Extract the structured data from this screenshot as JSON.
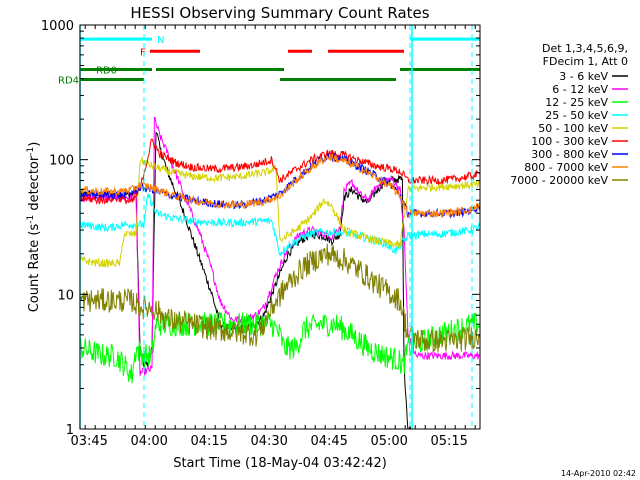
{
  "chart_data": {
    "type": "line",
    "title": "HESSI Observing Summary Count Rates",
    "xlabel": "Start Time (18-May-04 03:42:42)",
    "ylabel": "Count Rate (s⁻¹ detector⁻¹)",
    "ylabel_parts": {
      "main": "Count Rate (s",
      "sup1": "-1",
      "mid": " detector",
      "sup2": "-1",
      "end": ")"
    },
    "y_scale": "log",
    "ylim": [
      1,
      1000
    ],
    "xlim_minutes": [
      0,
      100
    ],
    "y_ticks": [
      {
        "value": 1,
        "label": "1"
      },
      {
        "value": 10,
        "label": "10"
      },
      {
        "value": 100,
        "label": "100"
      },
      {
        "value": 1000,
        "label": "1000"
      }
    ],
    "x_ticks": [
      {
        "t": 2.3,
        "label": "03:45"
      },
      {
        "t": 17.3,
        "label": "04:00"
      },
      {
        "t": 32.3,
        "label": "04:15"
      },
      {
        "t": 47.3,
        "label": "04:30"
      },
      {
        "t": 62.3,
        "label": "04:45"
      },
      {
        "t": 77.3,
        "label": "05:00"
      },
      {
        "t": 92.3,
        "label": "05:15"
      }
    ],
    "grid": false,
    "legend_position": "right",
    "legend_header": [
      "Det 1,3,4,5,6,9,",
      "FDecim 1, Att 0"
    ],
    "series": [
      {
        "name": "3 - 6 keV",
        "color": "#000000",
        "points": [
          [
            0,
            55
          ],
          [
            13,
            55
          ],
          [
            14,
            60
          ],
          [
            15,
            4
          ],
          [
            16,
            3
          ],
          [
            17,
            3
          ],
          [
            18,
            4
          ],
          [
            19,
            170
          ],
          [
            20,
            120
          ],
          [
            22,
            80
          ],
          [
            26,
            40
          ],
          [
            30,
            18
          ],
          [
            33,
            10
          ],
          [
            35,
            6
          ],
          [
            38,
            5.5
          ],
          [
            41,
            5.5
          ],
          [
            44,
            6
          ],
          [
            46,
            7
          ],
          [
            49,
            12
          ],
          [
            52,
            20
          ],
          [
            55,
            25
          ],
          [
            58,
            28
          ],
          [
            61,
            27
          ],
          [
            63,
            25
          ],
          [
            65,
            28
          ],
          [
            66,
            52
          ],
          [
            68,
            60
          ],
          [
            70,
            52
          ],
          [
            72,
            48
          ],
          [
            74,
            58
          ],
          [
            76,
            68
          ],
          [
            78,
            70
          ],
          [
            80,
            72
          ],
          [
            80.6,
            70
          ],
          [
            81,
            3
          ],
          [
            82,
            1
          ],
          [
            83,
            1
          ]
        ]
      },
      {
        "name": "6 - 12 keV",
        "color": "#ff00ff",
        "points": [
          [
            0,
            52
          ],
          [
            13,
            52
          ],
          [
            14,
            58
          ],
          [
            15,
            2.6
          ],
          [
            18,
            2.8
          ],
          [
            18.6,
            200
          ],
          [
            20,
            150
          ],
          [
            22,
            110
          ],
          [
            26,
            55
          ],
          [
            30,
            28
          ],
          [
            33,
            15
          ],
          [
            35,
            9
          ],
          [
            38,
            6.5
          ],
          [
            41,
            6.5
          ],
          [
            44,
            7
          ],
          [
            46,
            8
          ],
          [
            49,
            14
          ],
          [
            52,
            22
          ],
          [
            55,
            28
          ],
          [
            58,
            30
          ],
          [
            61,
            28
          ],
          [
            63,
            27
          ],
          [
            65,
            32
          ],
          [
            66,
            58
          ],
          [
            68,
            68
          ],
          [
            70,
            55
          ],
          [
            72,
            50
          ],
          [
            74,
            62
          ],
          [
            76,
            70
          ],
          [
            78,
            72
          ],
          [
            80,
            60
          ],
          [
            81,
            30
          ],
          [
            82,
            5
          ],
          [
            84,
            3.5
          ],
          [
            92,
            3.5
          ],
          [
            100,
            3.5
          ]
        ]
      },
      {
        "name": "12 - 25 keV",
        "color": "#00ff00",
        "points": [
          [
            0,
            4
          ],
          [
            6,
            3.5
          ],
          [
            9,
            3.5
          ],
          [
            11,
            3
          ],
          [
            13,
            2.5
          ],
          [
            14,
            4
          ],
          [
            16,
            3.5
          ],
          [
            18,
            3.5
          ],
          [
            19,
            6
          ],
          [
            24,
            6
          ],
          [
            30,
            6
          ],
          [
            36,
            6
          ],
          [
            42,
            6
          ],
          [
            48,
            6
          ],
          [
            50,
            5
          ],
          [
            51,
            4
          ],
          [
            54,
            4
          ],
          [
            56,
            5.5
          ],
          [
            60,
            6
          ],
          [
            64,
            6
          ],
          [
            68,
            5
          ],
          [
            72,
            4
          ],
          [
            76,
            3.5
          ],
          [
            79,
            3.3
          ],
          [
            81,
            3
          ],
          [
            82,
            4
          ],
          [
            86,
            4.5
          ],
          [
            90,
            5
          ],
          [
            94,
            5.5
          ],
          [
            98,
            6
          ],
          [
            100,
            6
          ]
        ]
      },
      {
        "name": "25 - 50 keV",
        "color": "#00ffff",
        "points": [
          [
            0,
            33
          ],
          [
            7,
            31
          ],
          [
            9,
            32
          ],
          [
            11,
            33
          ],
          [
            13,
            33
          ],
          [
            16,
            33
          ],
          [
            17,
            55
          ],
          [
            19,
            40
          ],
          [
            23,
            37
          ],
          [
            28,
            35
          ],
          [
            34,
            34
          ],
          [
            40,
            34
          ],
          [
            46,
            35
          ],
          [
            48,
            35
          ],
          [
            50,
            20
          ],
          [
            52,
            23
          ],
          [
            56,
            27
          ],
          [
            60,
            29
          ],
          [
            64,
            29
          ],
          [
            68,
            28
          ],
          [
            72,
            26
          ],
          [
            76,
            24
          ],
          [
            79,
            21
          ],
          [
            81,
            25
          ],
          [
            82,
            27
          ],
          [
            86,
            28
          ],
          [
            90,
            28
          ],
          [
            94,
            29
          ],
          [
            98,
            30
          ],
          [
            100,
            32
          ]
        ]
      },
      {
        "name": "50 - 100 keV",
        "color": "#d4d400",
        "points": [
          [
            0,
            18
          ],
          [
            5,
            17
          ],
          [
            10,
            17
          ],
          [
            11,
            28
          ],
          [
            14,
            28
          ],
          [
            15,
            100
          ],
          [
            18,
            90
          ],
          [
            22,
            82
          ],
          [
            28,
            75
          ],
          [
            34,
            73
          ],
          [
            40,
            75
          ],
          [
            46,
            80
          ],
          [
            49,
            85
          ],
          [
            50,
            25
          ],
          [
            54,
            30
          ],
          [
            58,
            38
          ],
          [
            61,
            50
          ],
          [
            63,
            45
          ],
          [
            66,
            30
          ],
          [
            70,
            27
          ],
          [
            74,
            25
          ],
          [
            77,
            24
          ],
          [
            80,
            23
          ],
          [
            82,
            60
          ],
          [
            86,
            62
          ],
          [
            90,
            63
          ],
          [
            94,
            64
          ],
          [
            98,
            65
          ],
          [
            100,
            65
          ]
        ]
      },
      {
        "name": "100 - 300 keV",
        "color": "#ff0000",
        "points": [
          [
            0,
            52
          ],
          [
            5,
            50
          ],
          [
            10,
            52
          ],
          [
            13,
            48
          ],
          [
            15,
            60
          ],
          [
            18,
            140
          ],
          [
            20,
            110
          ],
          [
            24,
            95
          ],
          [
            28,
            88
          ],
          [
            34,
            85
          ],
          [
            40,
            88
          ],
          [
            44,
            92
          ],
          [
            48,
            100
          ],
          [
            50,
            70
          ],
          [
            54,
            85
          ],
          [
            58,
            100
          ],
          [
            62,
            112
          ],
          [
            66,
            108
          ],
          [
            70,
            98
          ],
          [
            74,
            90
          ],
          [
            78,
            85
          ],
          [
            80,
            82
          ],
          [
            82,
            70
          ],
          [
            86,
            70
          ],
          [
            90,
            70
          ],
          [
            94,
            72
          ],
          [
            98,
            76
          ],
          [
            100,
            78
          ]
        ]
      },
      {
        "name": "300 - 800 keV",
        "color": "#0000ff",
        "points": [
          [
            0,
            56
          ],
          [
            5,
            55
          ],
          [
            10,
            55
          ],
          [
            13,
            57
          ],
          [
            15,
            62
          ],
          [
            18,
            60
          ],
          [
            22,
            55
          ],
          [
            28,
            50
          ],
          [
            34,
            47
          ],
          [
            40,
            46
          ],
          [
            46,
            50
          ],
          [
            50,
            56
          ],
          [
            54,
            72
          ],
          [
            58,
            90
          ],
          [
            62,
            108
          ],
          [
            66,
            100
          ],
          [
            70,
            88
          ],
          [
            74,
            76
          ],
          [
            78,
            64
          ],
          [
            80,
            55
          ],
          [
            82,
            40
          ],
          [
            86,
            40
          ],
          [
            90,
            40
          ],
          [
            94,
            40
          ],
          [
            98,
            42
          ],
          [
            100,
            46
          ]
        ]
      },
      {
        "name": "800 - 7000 keV",
        "color": "#ff8000",
        "points": [
          [
            0,
            60
          ],
          [
            5,
            58
          ],
          [
            10,
            58
          ],
          [
            13,
            60
          ],
          [
            15,
            65
          ],
          [
            18,
            62
          ],
          [
            22,
            56
          ],
          [
            28,
            50
          ],
          [
            34,
            47
          ],
          [
            40,
            46
          ],
          [
            46,
            49
          ],
          [
            50,
            54
          ],
          [
            54,
            70
          ],
          [
            58,
            88
          ],
          [
            62,
            105
          ],
          [
            66,
            98
          ],
          [
            70,
            86
          ],
          [
            74,
            74
          ],
          [
            78,
            62
          ],
          [
            80,
            54
          ],
          [
            82,
            40
          ],
          [
            86,
            40
          ],
          [
            90,
            40
          ],
          [
            94,
            41
          ],
          [
            98,
            43
          ],
          [
            100,
            46
          ]
        ]
      },
      {
        "name": "7000 - 20000 keV",
        "color": "#808000",
        "points": [
          [
            0,
            9
          ],
          [
            5,
            9
          ],
          [
            10,
            9
          ],
          [
            13,
            9
          ],
          [
            15,
            8
          ],
          [
            18,
            8
          ],
          [
            22,
            6.5
          ],
          [
            28,
            6
          ],
          [
            34,
            5.5
          ],
          [
            40,
            5.2
          ],
          [
            44,
            5
          ],
          [
            46,
            6
          ],
          [
            48,
            8
          ],
          [
            52,
            12
          ],
          [
            56,
            16
          ],
          [
            60,
            19
          ],
          [
            62,
            20
          ],
          [
            66,
            18
          ],
          [
            70,
            15
          ],
          [
            74,
            12
          ],
          [
            78,
            10
          ],
          [
            80,
            9
          ],
          [
            82,
            5
          ],
          [
            86,
            4.5
          ],
          [
            90,
            4.5
          ],
          [
            94,
            4.5
          ],
          [
            98,
            4.8
          ],
          [
            100,
            5
          ]
        ]
      }
    ],
    "flag_lines": [
      {
        "label": "N",
        "color": "#00ffff",
        "y_frac": 0.035,
        "segments": [
          [
            0,
            18
          ],
          [
            82.5,
            100
          ]
        ]
      },
      {
        "label": "F",
        "color": "#ff0000",
        "y_frac": 0.065,
        "segments": [
          [
            17.5,
            30
          ],
          [
            52,
            58
          ],
          [
            62,
            81
          ]
        ]
      },
      {
        "label": "RD0",
        "color": "#008000",
        "y_frac": 0.11,
        "segments": [
          [
            0,
            18
          ],
          [
            19,
            51
          ],
          [
            80,
            100
          ]
        ]
      },
      {
        "label": "RD4",
        "color": "#008000",
        "y_frac": 0.135,
        "segments": [
          [
            0,
            16
          ],
          [
            50,
            79
          ]
        ]
      }
    ],
    "vertical_markers": [
      {
        "t": 16,
        "color": "#00ffff",
        "style": "dashed"
      },
      {
        "t": 82.5,
        "color": "#00ffff",
        "style": "dashed"
      },
      {
        "t": 98,
        "color": "#00ffff",
        "style": "dashed"
      },
      {
        "t": 0,
        "color": "#00ffff",
        "style": "solid"
      },
      {
        "t": 83,
        "color": "#00ffff",
        "style": "solid"
      }
    ]
  },
  "footer": {
    "timestamp": "14-Apr-2010 02:42"
  }
}
